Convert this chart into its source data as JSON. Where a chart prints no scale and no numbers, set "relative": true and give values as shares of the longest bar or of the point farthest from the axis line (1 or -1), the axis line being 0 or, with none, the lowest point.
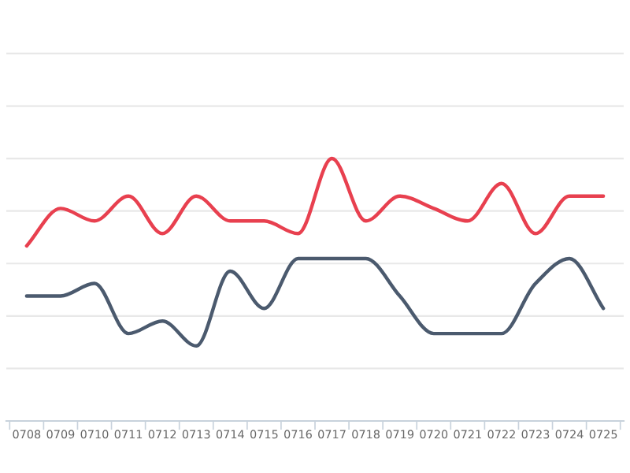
{
  "chart_data": {
    "type": "line",
    "relative": true,
    "grid": "y",
    "marker": "none",
    "line_style": "solid",
    "categories": [
      "0708",
      "0709",
      "0710",
      "0711",
      "0712",
      "0713",
      "0714",
      "0715",
      "0716",
      "0717",
      "0718",
      "0719",
      "0720",
      "0721",
      "0722",
      "0723",
      "0724",
      "0725"
    ],
    "series": [
      {
        "color": "#e8404f",
        "values": [
          0.667,
          0.81,
          0.762,
          0.857,
          0.714,
          0.857,
          0.762,
          0.762,
          0.714,
          1.0,
          0.762,
          0.857,
          0.81,
          0.762,
          0.905,
          0.714,
          0.857,
          0.857
        ]
      },
      {
        "color": "#4b5a6e",
        "values": [
          0.476,
          0.476,
          0.524,
          0.333,
          0.381,
          0.286,
          0.571,
          0.429,
          0.619,
          0.619,
          0.619,
          0.476,
          0.333,
          0.333,
          0.333,
          0.524,
          0.619,
          0.429
        ]
      }
    ]
  }
}
